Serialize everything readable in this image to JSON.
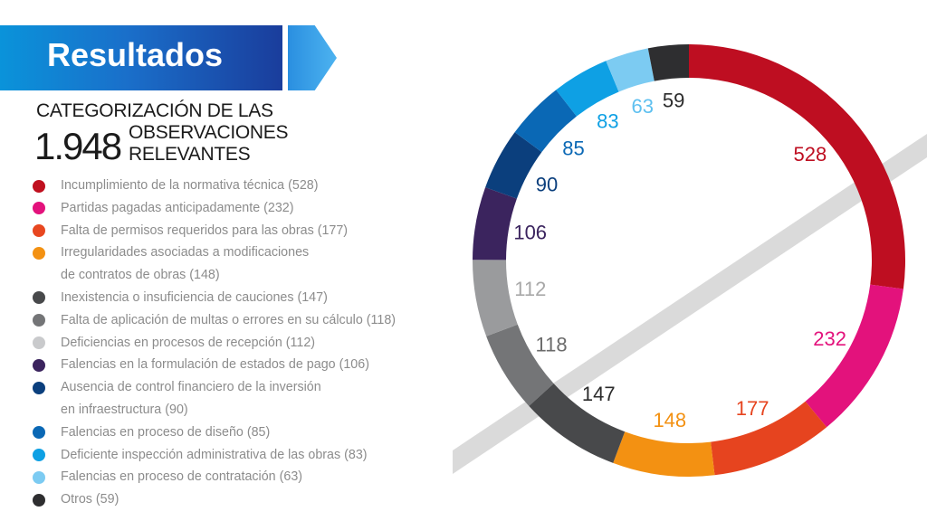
{
  "header": {
    "title": "Resultados"
  },
  "subtitle": {
    "line1": "CATEGORIZACIÓN DE LAS",
    "total": "1.948",
    "line2": "OBSERVACIONES",
    "line3": "RELEVANTES"
  },
  "legend": [
    {
      "lines": [
        "Incumplimiento de la normativa técnica (528)"
      ],
      "color": "#c0101f"
    },
    {
      "lines": [
        "Partidas pagadas anticipadamente (232)"
      ],
      "color": "#e3127c"
    },
    {
      "lines": [
        "Falta de permisos requeridos para las obras (177)"
      ],
      "color": "#e84720"
    },
    {
      "lines": [
        "Irregularidades asociadas a modificaciones",
        "de contratos de obras (148)"
      ],
      "color": "#f39112"
    },
    {
      "lines": [
        "Inexistencia o insuficiencia de cauciones (147)"
      ],
      "color": "#48494b"
    },
    {
      "lines": [
        "Falta de aplicación de multas o errores en su cálculo (118)"
      ],
      "color": "#747577"
    },
    {
      "lines": [
        "Deficiencias en procesos de recepción (112)"
      ],
      "color": "#c9cacc"
    },
    {
      "lines": [
        "Falencias en la formulación de estados de pago (106)"
      ],
      "color": "#3b245e"
    },
    {
      "lines": [
        "Ausencia de control financiero de la inversión",
        "en infraestructura (90)"
      ],
      "color": "#0b3f7d"
    },
    {
      "lines": [
        "Falencias en proceso de diseño (85)"
      ],
      "color": "#0a68b5"
    },
    {
      "lines": [
        "Deficiente inspección administrativa de las obras (83)"
      ],
      "color": "#0ea0e4"
    },
    {
      "lines": [
        "Falencias en proceso de contratación (63)"
      ],
      "color": "#7ccbf2"
    },
    {
      "lines": [
        "Otros (59)"
      ],
      "color": "#2e2e30"
    }
  ],
  "chart_data": {
    "type": "pie",
    "total": 1948,
    "values": [
      528,
      232,
      177,
      148,
      147,
      118,
      112,
      106,
      90,
      85,
      83,
      63,
      59
    ],
    "ring_colors": [
      "#be0e21",
      "#e3127c",
      "#e6441f",
      "#f39112",
      "#48494b",
      "#747577",
      "#9a9b9d",
      "#3b245e",
      "#0b3f7d",
      "#0a68b5",
      "#0ea0e4",
      "#7ccbf2",
      "#2e2e30"
    ],
    "label_colors": [
      "#be0e21",
      "#e3127c",
      "#e6441f",
      "#f39112",
      "#2b2b2b",
      "#6b6b6b",
      "#a8a8a8",
      "#3b245e",
      "#0b3f7d",
      "#0a68b5",
      "#0ea0e4",
      "#5ec0f0",
      "#2b2b2b"
    ],
    "labels": [
      "528",
      "232",
      "177",
      "148",
      "147",
      "118",
      "112",
      "106",
      "90",
      "85",
      "83",
      "63",
      "59"
    ]
  }
}
